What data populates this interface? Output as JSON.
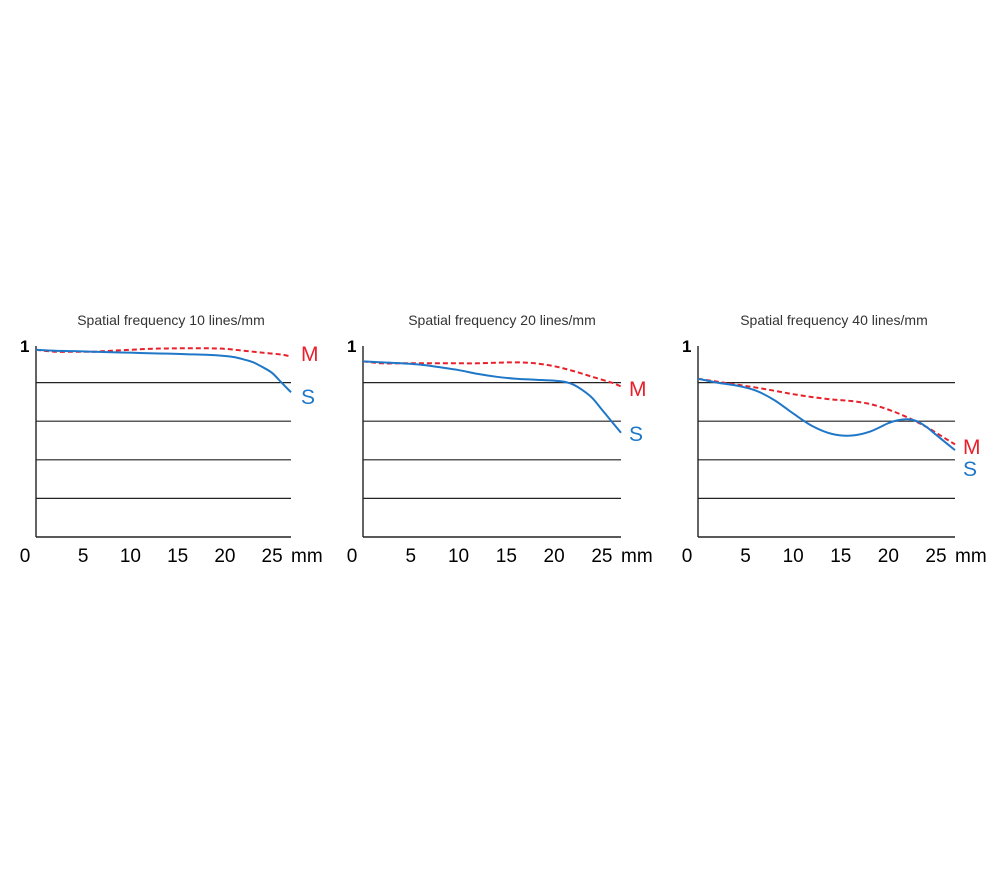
{
  "chart_data": [
    {
      "type": "line",
      "title": "Spatial frequency 10 lines/mm",
      "xlabel": "mm",
      "xlim": [
        0,
        27
      ],
      "ylim": [
        0,
        1
      ],
      "x_ticks": [
        "0",
        "5",
        "10",
        "15",
        "20",
        "25"
      ],
      "y_ticks": [
        "1"
      ],
      "gridlines_y": [
        0.2,
        0.4,
        0.6,
        0.8
      ],
      "colors": {
        "M": "#e8202a",
        "S": "#1f77c8"
      },
      "series": [
        {
          "name": "M",
          "style": "dashed",
          "x": [
            0,
            2,
            4,
            6,
            8,
            10,
            12,
            14,
            16,
            18,
            20,
            22,
            24,
            26,
            27
          ],
          "y": [
            0.97,
            0.96,
            0.96,
            0.96,
            0.965,
            0.97,
            0.975,
            0.977,
            0.978,
            0.978,
            0.975,
            0.965,
            0.955,
            0.945,
            0.935
          ]
        },
        {
          "name": "S",
          "style": "solid",
          "x": [
            0,
            2,
            4,
            6,
            8,
            10,
            12,
            14,
            16,
            18,
            20,
            21,
            22,
            23,
            24,
            25,
            26,
            27
          ],
          "y": [
            0.97,
            0.965,
            0.963,
            0.96,
            0.957,
            0.955,
            0.952,
            0.95,
            0.947,
            0.944,
            0.938,
            0.932,
            0.92,
            0.905,
            0.88,
            0.85,
            0.8,
            0.75
          ]
        }
      ]
    },
    {
      "type": "line",
      "title": "Spatial frequency 20 lines/mm",
      "xlabel": "mm",
      "xlim": [
        0,
        27
      ],
      "ylim": [
        0,
        1
      ],
      "x_ticks": [
        "0",
        "5",
        "10",
        "15",
        "20",
        "25"
      ],
      "y_ticks": [
        "1"
      ],
      "gridlines_y": [
        0.2,
        0.4,
        0.6,
        0.8
      ],
      "colors": {
        "M": "#e8202a",
        "S": "#1f77c8"
      },
      "series": [
        {
          "name": "M",
          "style": "dashed",
          "x": [
            0,
            2,
            4,
            6,
            8,
            10,
            12,
            14,
            16,
            18,
            20,
            22,
            24,
            26,
            27
          ],
          "y": [
            0.91,
            0.9,
            0.9,
            0.9,
            0.9,
            0.9,
            0.9,
            0.903,
            0.905,
            0.9,
            0.885,
            0.86,
            0.83,
            0.8,
            0.78
          ]
        },
        {
          "name": "S",
          "style": "solid",
          "x": [
            0,
            2,
            4,
            6,
            8,
            10,
            12,
            14,
            16,
            18,
            20,
            21,
            22,
            23,
            24,
            25,
            26,
            27
          ],
          "y": [
            0.91,
            0.905,
            0.9,
            0.893,
            0.88,
            0.865,
            0.845,
            0.83,
            0.82,
            0.815,
            0.81,
            0.805,
            0.79,
            0.76,
            0.72,
            0.66,
            0.6,
            0.54
          ]
        }
      ]
    },
    {
      "type": "line",
      "title": "Spatial frequency 40 lines/mm",
      "xlabel": "mm",
      "xlim": [
        0,
        27
      ],
      "ylim": [
        0,
        1
      ],
      "x_ticks": [
        "0",
        "5",
        "10",
        "15",
        "20",
        "25"
      ],
      "y_ticks": [
        "1"
      ],
      "gridlines_y": [
        0.2,
        0.4,
        0.6,
        0.8
      ],
      "colors": {
        "M": "#e8202a",
        "S": "#1f77c8"
      },
      "series": [
        {
          "name": "M",
          "style": "dashed",
          "x": [
            0,
            2,
            4,
            6,
            8,
            10,
            12,
            14,
            16,
            18,
            20,
            22,
            24,
            26,
            27
          ],
          "y": [
            0.82,
            0.805,
            0.79,
            0.775,
            0.758,
            0.74,
            0.725,
            0.713,
            0.705,
            0.69,
            0.66,
            0.62,
            0.57,
            0.51,
            0.48
          ]
        },
        {
          "name": "S",
          "style": "solid",
          "x": [
            0,
            2,
            4,
            6,
            8,
            10,
            12,
            14,
            16,
            18,
            20,
            21,
            22,
            23,
            24,
            25,
            26,
            27
          ],
          "y": [
            0.82,
            0.8,
            0.785,
            0.76,
            0.71,
            0.64,
            0.575,
            0.535,
            0.525,
            0.545,
            0.59,
            0.605,
            0.61,
            0.6,
            0.57,
            0.53,
            0.49,
            0.45
          ]
        }
      ]
    }
  ]
}
